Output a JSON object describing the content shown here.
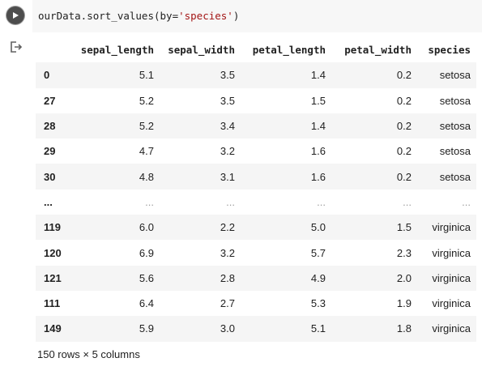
{
  "cell": {
    "code_prefix": "ourData.sort_values(by=",
    "code_string": "'species'",
    "code_suffix": ")"
  },
  "output": {
    "columns": [
      "",
      "sepal_length",
      "sepal_width",
      "petal_length",
      "petal_width",
      "species"
    ],
    "rows": [
      [
        "0",
        "5.1",
        "3.5",
        "1.4",
        "0.2",
        "setosa"
      ],
      [
        "27",
        "5.2",
        "3.5",
        "1.5",
        "0.2",
        "setosa"
      ],
      [
        "28",
        "5.2",
        "3.4",
        "1.4",
        "0.2",
        "setosa"
      ],
      [
        "29",
        "4.7",
        "3.2",
        "1.6",
        "0.2",
        "setosa"
      ],
      [
        "30",
        "4.8",
        "3.1",
        "1.6",
        "0.2",
        "setosa"
      ],
      [
        "...",
        "...",
        "...",
        "...",
        "...",
        "..."
      ],
      [
        "119",
        "6.0",
        "2.2",
        "5.0",
        "1.5",
        "virginica"
      ],
      [
        "120",
        "6.9",
        "3.2",
        "5.7",
        "2.3",
        "virginica"
      ],
      [
        "121",
        "5.6",
        "2.8",
        "4.9",
        "2.0",
        "virginica"
      ],
      [
        "111",
        "6.4",
        "2.7",
        "5.3",
        "1.9",
        "virginica"
      ],
      [
        "149",
        "5.9",
        "3.0",
        "5.1",
        "1.8",
        "virginica"
      ]
    ],
    "summary": "150 rows × 5 columns"
  },
  "icons": {
    "run": "play-icon",
    "output": "output-redirect-icon"
  },
  "colors": {
    "run_button": "#4d4d4d",
    "code_bg": "#f7f7f7",
    "string": "#a31515",
    "stripe": "#f5f5f5"
  }
}
